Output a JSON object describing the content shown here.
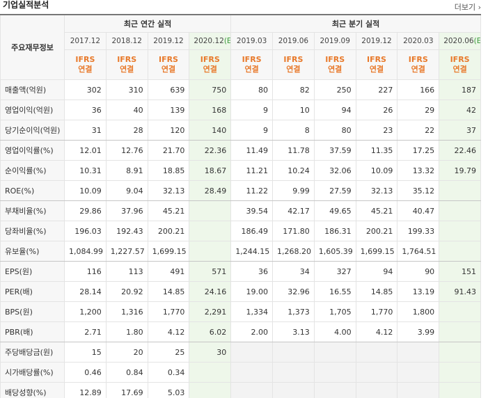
{
  "title": "기업실적분석",
  "more": "더보기 ›",
  "table": {
    "header": {
      "label": "주요재무정보",
      "groups": [
        "최근 연간 실적",
        "최근 분기 실적"
      ]
    },
    "columns": [
      {
        "date": "2017.12",
        "est": null,
        "basis": [
          "IFRS",
          "연결"
        ]
      },
      {
        "date": "2018.12",
        "est": null,
        "basis": [
          "IFRS",
          "연결"
        ]
      },
      {
        "date": "2019.12",
        "est": null,
        "basis": [
          "IFRS",
          "연결"
        ]
      },
      {
        "date": "2020.12",
        "est": "(E)",
        "basis": [
          "IFRS",
          "연결"
        ]
      },
      {
        "date": "2019.03",
        "est": null,
        "basis": [
          "IFRS",
          "연결"
        ]
      },
      {
        "date": "2019.06",
        "est": null,
        "basis": [
          "IFRS",
          "연결"
        ]
      },
      {
        "date": "2019.09",
        "est": null,
        "basis": [
          "IFRS",
          "연결"
        ]
      },
      {
        "date": "2019.12",
        "est": null,
        "basis": [
          "IFRS",
          "연결"
        ]
      },
      {
        "date": "2020.03",
        "est": null,
        "basis": [
          "IFRS",
          "연결"
        ]
      },
      {
        "date": "2020.06",
        "est": "(E)",
        "basis": [
          "IFRS",
          "연결"
        ]
      }
    ],
    "rows": [
      {
        "label": "매출액(억원)",
        "values": [
          "302",
          "310",
          "639",
          "750",
          "80",
          "82",
          "250",
          "227",
          "166",
          "187"
        ]
      },
      {
        "label": "영업이익(억원)",
        "values": [
          "36",
          "40",
          "139",
          "168",
          "9",
          "10",
          "94",
          "26",
          "29",
          "42"
        ]
      },
      {
        "label": "당기순이익(억원)",
        "values": [
          "31",
          "28",
          "120",
          "140",
          "9",
          "8",
          "80",
          "23",
          "22",
          "37"
        ]
      },
      {
        "label": "영업이익률(%)",
        "values": [
          "12.01",
          "12.76",
          "21.70",
          "22.36",
          "11.49",
          "11.78",
          "37.59",
          "11.35",
          "17.25",
          "22.46"
        ]
      },
      {
        "label": "순이익률(%)",
        "values": [
          "10.31",
          "8.91",
          "18.85",
          "18.67",
          "11.21",
          "10.24",
          "32.06",
          "10.09",
          "13.32",
          "19.79"
        ]
      },
      {
        "label": "ROE(%)",
        "values": [
          "10.09",
          "9.04",
          "32.13",
          "28.49",
          "11.22",
          "9.99",
          "27.59",
          "32.13",
          "35.12",
          null
        ]
      },
      {
        "label": "부채비율(%)",
        "values": [
          "29.86",
          "37.96",
          "45.21",
          null,
          "39.54",
          "42.17",
          "49.65",
          "45.21",
          "40.47",
          null
        ]
      },
      {
        "label": "당좌비율(%)",
        "values": [
          "196.03",
          "192.43",
          "200.21",
          null,
          "186.49",
          "171.80",
          "186.31",
          "200.21",
          "199.33",
          null
        ]
      },
      {
        "label": "유보율(%)",
        "values": [
          "1,084.99",
          "1,227.57",
          "1,699.15",
          null,
          "1,244.15",
          "1,268.20",
          "1,605.39",
          "1,699.15",
          "1,764.51",
          null
        ]
      },
      {
        "label": "EPS(원)",
        "values": [
          "116",
          "113",
          "491",
          "571",
          "36",
          "34",
          "327",
          "94",
          "90",
          "151"
        ]
      },
      {
        "label": "PER(배)",
        "values": [
          "28.14",
          "20.92",
          "14.85",
          "24.16",
          "19.00",
          "32.96",
          "16.55",
          "14.85",
          "13.19",
          "91.43"
        ]
      },
      {
        "label": "BPS(원)",
        "values": [
          "1,200",
          "1,316",
          "1,770",
          "2,291",
          "1,334",
          "1,373",
          "1,705",
          "1,770",
          "1,800",
          null
        ]
      },
      {
        "label": "PBR(배)",
        "values": [
          "2.71",
          "1.80",
          "4.12",
          "6.02",
          "2.00",
          "3.13",
          "4.00",
          "4.12",
          "3.99",
          null
        ]
      },
      {
        "label": "주당배당금(원)",
        "values": [
          "15",
          "20",
          "25",
          "30",
          null,
          null,
          null,
          null,
          null,
          null
        ]
      },
      {
        "label": "시가배당률(%)",
        "values": [
          "0.46",
          "0.84",
          "0.34",
          null,
          null,
          null,
          null,
          null,
          null,
          null
        ]
      },
      {
        "label": "배당성향(%)",
        "values": [
          "12.89",
          "17.69",
          "5.03",
          null,
          null,
          null,
          null,
          null,
          null,
          null
        ]
      }
    ]
  }
}
